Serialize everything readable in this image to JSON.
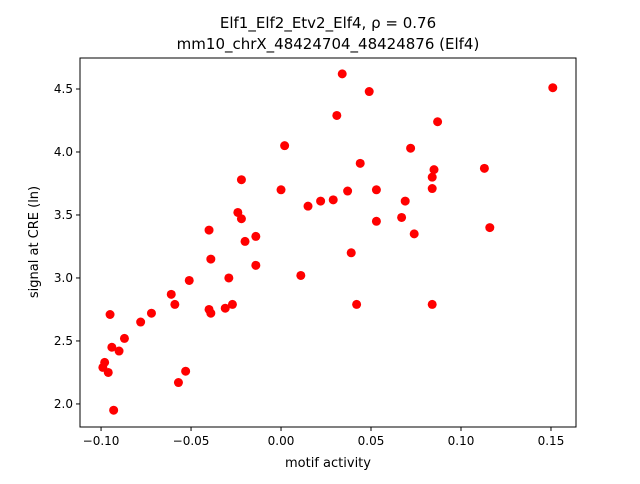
{
  "chart_data": {
    "type": "scatter",
    "title_line1": "Elf1_Elf2_Etv2_Elf4, ρ = 0.76",
    "title_line2": "mm10_chrX_48424704_48424876 (Elf4)",
    "xlabel": "motif activity",
    "ylabel": "signal at CRE (ln)",
    "xlim": [
      -0.1117,
      0.1639
    ],
    "ylim": [
      1.817,
      4.746
    ],
    "xticks": [
      -0.1,
      -0.05,
      0.0,
      0.05,
      0.1,
      0.15
    ],
    "xtick_labels": [
      "−0.10",
      "−0.05",
      "0.00",
      "0.05",
      "0.10",
      "0.15"
    ],
    "yticks": [
      2.0,
      2.5,
      3.0,
      3.5,
      4.0,
      4.5
    ],
    "ytick_labels": [
      "2.0",
      "2.5",
      "3.0",
      "3.5",
      "4.0",
      "4.5"
    ],
    "grid": false,
    "marker_color": "#ff0000",
    "points": [
      [
        0.151,
        4.51
      ],
      [
        0.034,
        4.62
      ],
      [
        0.049,
        4.48
      ],
      [
        0.031,
        4.29
      ],
      [
        0.087,
        4.24
      ],
      [
        0.002,
        4.05
      ],
      [
        0.072,
        4.03
      ],
      [
        0.044,
        3.91
      ],
      [
        0.113,
        3.87
      ],
      [
        0.085,
        3.86
      ],
      [
        0.084,
        3.8
      ],
      [
        -0.022,
        3.78
      ],
      [
        0.0,
        3.7
      ],
      [
        0.037,
        3.69
      ],
      [
        0.053,
        3.7
      ],
      [
        0.084,
        3.71
      ],
      [
        0.069,
        3.61
      ],
      [
        0.022,
        3.61
      ],
      [
        0.029,
        3.62
      ],
      [
        0.015,
        3.57
      ],
      [
        -0.024,
        3.52
      ],
      [
        -0.022,
        3.47
      ],
      [
        0.067,
        3.48
      ],
      [
        0.053,
        3.45
      ],
      [
        0.116,
        3.4
      ],
      [
        -0.04,
        3.38
      ],
      [
        0.074,
        3.35
      ],
      [
        -0.014,
        3.33
      ],
      [
        -0.02,
        3.29
      ],
      [
        0.039,
        3.2
      ],
      [
        -0.039,
        3.15
      ],
      [
        -0.014,
        3.1
      ],
      [
        0.011,
        3.02
      ],
      [
        -0.051,
        2.98
      ],
      [
        -0.029,
        3.0
      ],
      [
        -0.061,
        2.87
      ],
      [
        -0.059,
        2.79
      ],
      [
        0.042,
        2.79
      ],
      [
        0.084,
        2.79
      ],
      [
        -0.027,
        2.79
      ],
      [
        -0.031,
        2.76
      ],
      [
        -0.04,
        2.75
      ],
      [
        -0.039,
        2.72
      ],
      [
        -0.072,
        2.72
      ],
      [
        -0.095,
        2.71
      ],
      [
        -0.078,
        2.65
      ],
      [
        -0.087,
        2.52
      ],
      [
        -0.094,
        2.45
      ],
      [
        -0.09,
        2.42
      ],
      [
        -0.098,
        2.33
      ],
      [
        -0.099,
        2.29
      ],
      [
        -0.096,
        2.25
      ],
      [
        -0.053,
        2.26
      ],
      [
        -0.057,
        2.17
      ],
      [
        -0.093,
        1.95
      ]
    ]
  }
}
